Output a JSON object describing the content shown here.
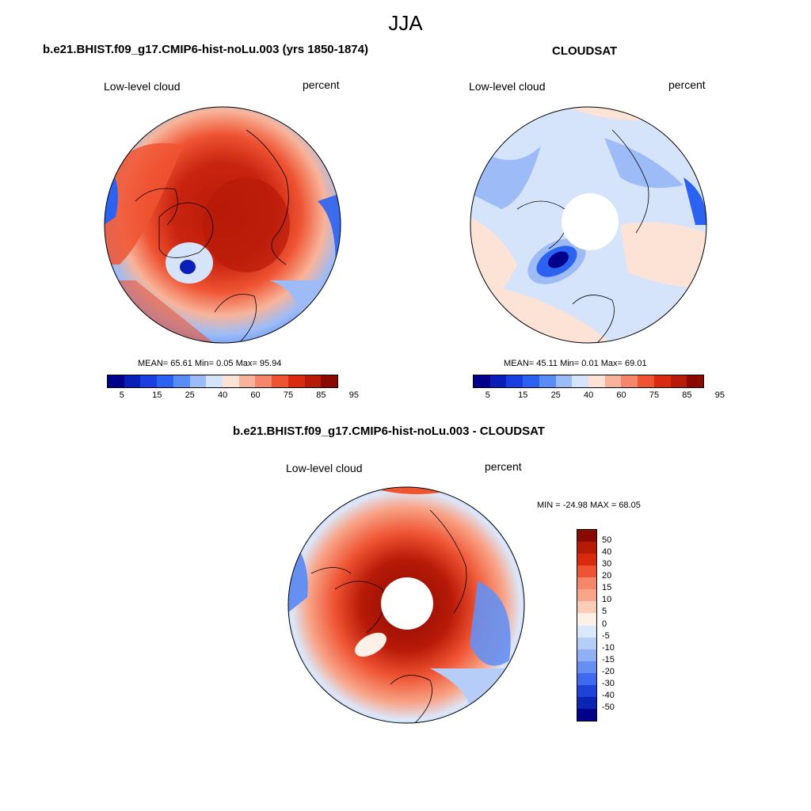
{
  "season": "JJA",
  "panels": [
    {
      "title": "b.e21.BHIST.f09_g17.CMIP6-hist-noLu.003 (yrs 1850-1874)",
      "left_label": "Low-level cloud",
      "right_label": "percent",
      "mean_label": "MEAN=",
      "mean": "65.61",
      "min_label": "Min=",
      "min": "0.05",
      "max_label": "Max=",
      "max": "95.94",
      "colorbar_ticks": [
        "5",
        "15",
        "25",
        "40",
        "60",
        "75",
        "85",
        "95"
      ]
    },
    {
      "title": "CLOUDSAT",
      "left_label": "Low-level cloud",
      "right_label": "percent",
      "mean_label": "MEAN=",
      "mean": "45.11",
      "min_label": "Min=",
      "min": "0.01",
      "max_label": "Max=",
      "max": "69.01",
      "colorbar_ticks": [
        "5",
        "15",
        "25",
        "40",
        "60",
        "75",
        "85",
        "95"
      ]
    }
  ],
  "diff": {
    "title": "b.e21.BHIST.f09_g17.CMIP6-hist-noLu.003 - CLOUDSAT",
    "left_label": "Low-level cloud",
    "right_label": "percent",
    "minmax": "MIN = -24.98 MAX =  68.05",
    "colorbar_ticks": [
      "50",
      "40",
      "30",
      "20",
      "15",
      "10",
      "5",
      "0",
      "-5",
      "-10",
      "-15",
      "-20",
      "-30",
      "-40",
      "-50"
    ]
  },
  "colors": {
    "abs_scale": [
      "#00008b",
      "#0a1fb8",
      "#1a3fe0",
      "#2b63f0",
      "#5a8cf5",
      "#9dbcf7",
      "#d6e4fb",
      "#fce3d6",
      "#f8b49a",
      "#f5866a",
      "#ee5332",
      "#d92a10",
      "#b81a08",
      "#8b0a00"
    ],
    "diff_scale": [
      "#8b0a00",
      "#b81a08",
      "#d92a10",
      "#ee5332",
      "#f5866a",
      "#f8a488",
      "#fbcdb8",
      "#fdf0e6",
      "#dce8fb",
      "#b5cdf7",
      "#8fb0f5",
      "#6590f2",
      "#3f6af0",
      "#1f42d8",
      "#0a24b4",
      "#00008b"
    ]
  }
}
